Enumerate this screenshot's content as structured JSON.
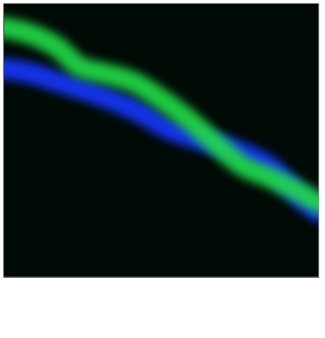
{
  "chart_data": {
    "type": "line",
    "xlim": [
      0,
      460
    ],
    "ylim": [
      400,
      0
    ],
    "tick_labels": false,
    "grid": false,
    "series": [
      {
        "color": "#1438ff",
        "x": [
          0,
          40,
          90,
          150,
          200,
          240,
          290,
          340,
          390,
          430,
          460
        ],
        "values": [
          95,
          102,
          118,
          138,
          160,
          183,
          200,
          215,
          240,
          280,
          305
        ]
      },
      {
        "color": "#22dd4a",
        "x": [
          0,
          40,
          80,
          110,
          150,
          190,
          230,
          270,
          310,
          350,
          390,
          430,
          460
        ],
        "values": [
          35,
          45,
          65,
          92,
          103,
          115,
          140,
          170,
          205,
          238,
          255,
          275,
          292
        ]
      }
    ]
  }
}
